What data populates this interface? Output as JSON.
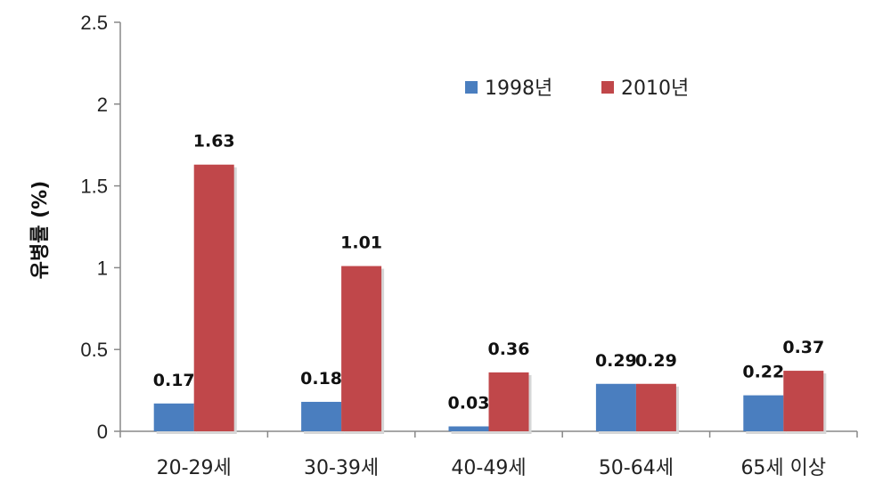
{
  "chart_data": {
    "type": "bar",
    "ylabel": "유병률 (%)",
    "xlabel": "",
    "ylim": [
      0,
      2.5
    ],
    "yticks": [
      "0",
      "0.5",
      "1",
      "1.5",
      "2",
      "2.5"
    ],
    "grid": false,
    "legend_position": "top-right",
    "categories": [
      "20-29세",
      "30-39세",
      "40-49세",
      "50-64세",
      "65세 이상"
    ],
    "series": [
      {
        "name": "1998년",
        "color": "#4a7ebf",
        "values": [
          0.17,
          0.18,
          0.03,
          0.29,
          0.22
        ],
        "labels": [
          "0.17",
          "0.18",
          "0.03",
          "0.29",
          "0.22"
        ]
      },
      {
        "name": "2010년",
        "color": "#c0474a",
        "values": [
          1.63,
          1.01,
          0.36,
          0.29,
          0.37
        ],
        "labels": [
          "1.63",
          "1.01",
          "0.36",
          "0.29",
          "0.37"
        ]
      }
    ]
  }
}
